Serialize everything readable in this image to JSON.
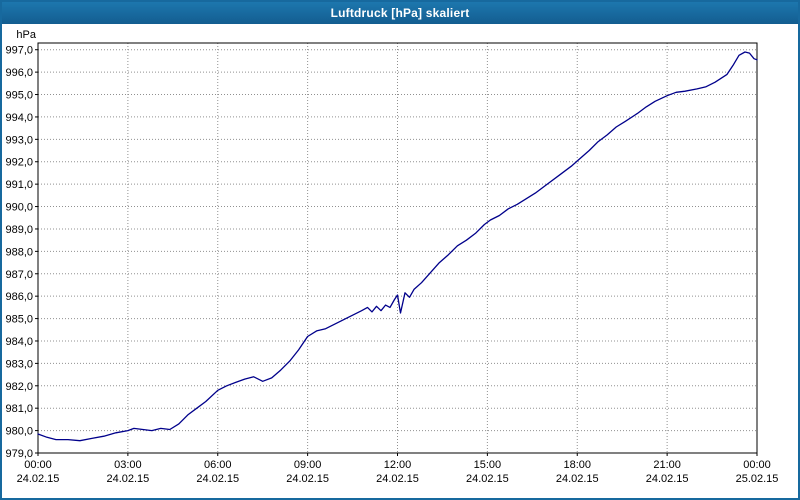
{
  "window": {
    "title": "Luftdruck [hPa] skaliert",
    "titlebar_color": "#17699e",
    "border_color": "#17699e"
  },
  "chart_data": {
    "type": "line",
    "title": "Luftdruck [hPa] skaliert",
    "ylabel": "hPa",
    "ylim": [
      979.0,
      997.3
    ],
    "yticks": [
      979,
      980,
      981,
      982,
      983,
      984,
      985,
      986,
      987,
      988,
      989,
      990,
      991,
      992,
      993,
      994,
      995,
      996,
      997
    ],
    "ytick_labels": [
      "979,0",
      "980,0",
      "981,0",
      "982,0",
      "983,0",
      "984,0",
      "985,0",
      "986,0",
      "987,0",
      "988,0",
      "989,0",
      "990,0",
      "991,0",
      "992,0",
      "993,0",
      "994,0",
      "995,0",
      "996,0",
      "997,0"
    ],
    "xlim": [
      0,
      24
    ],
    "xticks": [
      0,
      3,
      6,
      9,
      12,
      15,
      18,
      21,
      24
    ],
    "xtick_time_labels": [
      "00:00",
      "03:00",
      "06:00",
      "09:00",
      "12:00",
      "15:00",
      "18:00",
      "21:00",
      "00:00"
    ],
    "xtick_date_labels": [
      "24.02.15",
      "24.02.15",
      "24.02.15",
      "24.02.15",
      "24.02.15",
      "24.02.15",
      "24.02.15",
      "24.02.15",
      "25.02.15"
    ],
    "grid": true,
    "grid_color": "#909090",
    "line_color": "#00008b",
    "plot_border_color": "#000000",
    "series": [
      {
        "name": "Luftdruck",
        "points": [
          [
            0,
            979.85
          ],
          [
            0.3,
            979.7
          ],
          [
            0.6,
            979.6
          ],
          [
            1,
            979.6
          ],
          [
            1.4,
            979.55
          ],
          [
            1.8,
            979.65
          ],
          [
            2.2,
            979.75
          ],
          [
            2.6,
            979.9
          ],
          [
            3,
            980.0
          ],
          [
            3.2,
            980.1
          ],
          [
            3.5,
            980.05
          ],
          [
            3.8,
            980.0
          ],
          [
            4.1,
            980.1
          ],
          [
            4.4,
            980.05
          ],
          [
            4.7,
            980.3
          ],
          [
            5,
            980.7
          ],
          [
            5.3,
            981.0
          ],
          [
            5.6,
            981.3
          ],
          [
            6,
            981.8
          ],
          [
            6.3,
            982.0
          ],
          [
            6.6,
            982.15
          ],
          [
            6.9,
            982.3
          ],
          [
            7.2,
            982.4
          ],
          [
            7.5,
            982.2
          ],
          [
            7.8,
            982.35
          ],
          [
            8.1,
            982.7
          ],
          [
            8.4,
            983.1
          ],
          [
            8.7,
            983.6
          ],
          [
            9,
            984.2
          ],
          [
            9.3,
            984.45
          ],
          [
            9.6,
            984.55
          ],
          [
            9.9,
            984.75
          ],
          [
            10.2,
            984.95
          ],
          [
            10.5,
            985.15
          ],
          [
            10.8,
            985.35
          ],
          [
            11,
            985.5
          ],
          [
            11.15,
            985.3
          ],
          [
            11.3,
            985.55
          ],
          [
            11.45,
            985.35
          ],
          [
            11.6,
            985.6
          ],
          [
            11.75,
            985.5
          ],
          [
            11.9,
            985.85
          ],
          [
            12,
            986.05
          ],
          [
            12.1,
            985.25
          ],
          [
            12.25,
            986.15
          ],
          [
            12.4,
            985.95
          ],
          [
            12.55,
            986.3
          ],
          [
            12.8,
            986.6
          ],
          [
            13.1,
            987.05
          ],
          [
            13.4,
            987.5
          ],
          [
            13.7,
            987.85
          ],
          [
            14,
            988.25
          ],
          [
            14.3,
            988.5
          ],
          [
            14.6,
            988.8
          ],
          [
            14.9,
            989.2
          ],
          [
            15.1,
            989.4
          ],
          [
            15.4,
            989.6
          ],
          [
            15.7,
            989.9
          ],
          [
            16,
            990.1
          ],
          [
            16.3,
            990.35
          ],
          [
            16.6,
            990.6
          ],
          [
            17,
            991.0
          ],
          [
            17.4,
            991.4
          ],
          [
            17.8,
            991.8
          ],
          [
            18.1,
            992.15
          ],
          [
            18.4,
            992.5
          ],
          [
            18.7,
            992.9
          ],
          [
            19,
            993.2
          ],
          [
            19.3,
            993.55
          ],
          [
            19.6,
            993.8
          ],
          [
            20,
            994.15
          ],
          [
            20.3,
            994.45
          ],
          [
            20.6,
            994.7
          ],
          [
            21,
            994.95
          ],
          [
            21.3,
            995.1
          ],
          [
            21.6,
            995.15
          ],
          [
            22,
            995.25
          ],
          [
            22.3,
            995.35
          ],
          [
            22.6,
            995.55
          ],
          [
            23,
            995.9
          ],
          [
            23.2,
            996.3
          ],
          [
            23.4,
            996.75
          ],
          [
            23.6,
            996.9
          ],
          [
            23.75,
            996.85
          ],
          [
            23.9,
            996.6
          ],
          [
            24,
            996.55
          ]
        ]
      }
    ]
  }
}
